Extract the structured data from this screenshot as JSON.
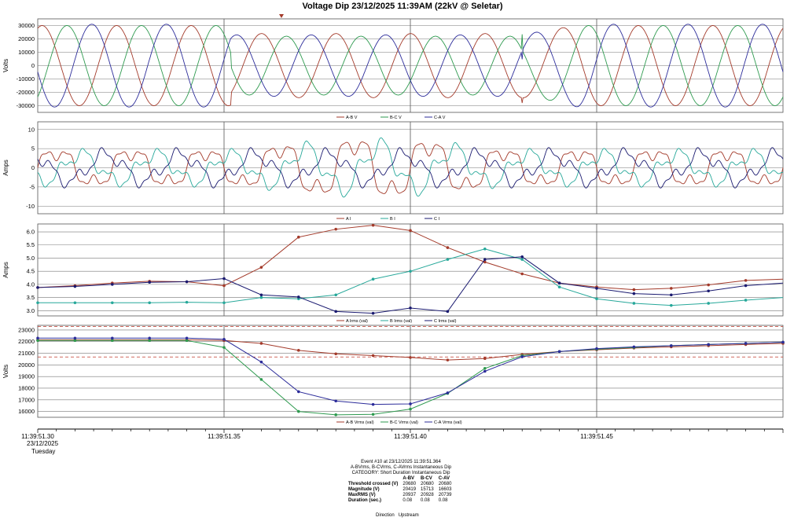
{
  "title": "Voltage Dip 23/12/2025 11:39AM (22kV @ Seletar)",
  "colors": {
    "red": "#a33a2a",
    "green": "#2e9a4f",
    "blue": "#2c2c9a",
    "teal": "#27a89a",
    "navy": "#1a1a70",
    "threshold": "#c0392b"
  },
  "x_axis": {
    "ticks": [
      "11:39:51.30",
      "11:39:51.35",
      "11:39:51.40",
      "11:39:51.45"
    ],
    "date": "23/12/2025",
    "day": "Tuesday"
  },
  "chart_data": [
    {
      "type": "line",
      "ylabel": "Volts",
      "ylim": [
        -35000,
        35000
      ],
      "yticks": [
        -30000,
        -20000,
        -10000,
        0,
        10000,
        20000,
        30000
      ],
      "legend": [
        "A-B V",
        "B-C V",
        "C-A V"
      ],
      "series": [
        {
          "name": "A-B V",
          "amp_pre": 30000,
          "amp_dip": 24000,
          "phase_deg": 0
        },
        {
          "name": "B-C V",
          "amp_pre": 30000,
          "amp_dip": 22000,
          "phase_deg": -120
        },
        {
          "name": "C-A V",
          "amp_pre": 31000,
          "amp_dip": 23000,
          "phase_deg": 120
        }
      ],
      "frequency_hz": 50
    },
    {
      "type": "line",
      "ylabel": "Amps",
      "ylim": [
        -12,
        12
      ],
      "yticks": [
        -10,
        -5,
        0,
        5,
        10
      ],
      "legend": [
        "A I",
        "B I",
        "C I"
      ],
      "series": [
        {
          "name": "A I",
          "amp_pre": 6,
          "amp_dip": 10
        },
        {
          "name": "B I",
          "amp_pre": 5,
          "amp_dip": 8
        },
        {
          "name": "C I",
          "amp_pre": 5,
          "amp_dip": 5
        }
      ]
    },
    {
      "type": "line",
      "ylabel": "Amps",
      "ylim": [
        2.8,
        6.3
      ],
      "yticks": [
        3.0,
        3.5,
        4.0,
        4.5,
        5.0,
        5.5,
        6.0
      ],
      "legend": [
        "A Irms (val)",
        "B Irms (val)",
        "C Irms (val)"
      ],
      "x_ms": [
        0,
        10,
        20,
        30,
        40,
        50,
        60,
        70,
        80,
        90,
        100,
        110,
        120,
        130,
        140,
        150,
        160,
        170,
        180,
        190,
        200
      ],
      "series": [
        {
          "name": "A Irms (val)",
          "values": [
            3.88,
            3.95,
            4.05,
            4.12,
            4.1,
            3.95,
            4.65,
            5.8,
            6.1,
            6.25,
            6.05,
            5.4,
            4.85,
            4.4,
            4.05,
            3.9,
            3.8,
            3.85,
            3.98,
            4.15,
            4.2
          ]
        },
        {
          "name": "B Irms (val)",
          "values": [
            3.3,
            3.3,
            3.3,
            3.3,
            3.32,
            3.3,
            3.5,
            3.45,
            3.6,
            4.2,
            4.5,
            4.95,
            5.35,
            4.95,
            3.9,
            3.45,
            3.28,
            3.2,
            3.28,
            3.4,
            3.5
          ]
        },
        {
          "name": "C Irms (val)",
          "values": [
            3.88,
            3.92,
            4.0,
            4.08,
            4.1,
            4.22,
            3.6,
            3.52,
            2.97,
            2.9,
            3.1,
            2.97,
            4.95,
            5.05,
            4.05,
            3.85,
            3.65,
            3.6,
            3.75,
            3.95,
            4.05
          ]
        }
      ]
    },
    {
      "type": "line",
      "ylabel": "Volts",
      "ylim": [
        15500,
        23400
      ],
      "yticks": [
        16000,
        17000,
        18000,
        19000,
        20000,
        21000,
        22000,
        23000
      ],
      "legend": [
        "A-B Vrms (val)",
        "B-C Vrms (val)",
        "C-A Vrms (val)"
      ],
      "thresholds": [
        23300,
        20680
      ],
      "x_ms": [
        0,
        10,
        20,
        30,
        40,
        50,
        60,
        70,
        80,
        90,
        100,
        110,
        120,
        130,
        140,
        150,
        160,
        170,
        180,
        190,
        200
      ],
      "series": [
        {
          "name": "A-B Vrms (val)",
          "values": [
            22150,
            22150,
            22150,
            22150,
            22150,
            22100,
            21850,
            21250,
            20950,
            20800,
            20640,
            20419,
            20550,
            20900,
            21150,
            21300,
            21450,
            21550,
            21650,
            21750,
            21850
          ]
        },
        {
          "name": "B-C Vrms (val)",
          "values": [
            22100,
            22100,
            22100,
            22100,
            22100,
            21500,
            18750,
            16000,
            15713,
            15750,
            16200,
            17550,
            19700,
            20800,
            21150,
            21350,
            21500,
            21650,
            21750,
            21850,
            21950
          ]
        },
        {
          "name": "C-A Vrms (val)",
          "values": [
            22300,
            22300,
            22300,
            22300,
            22300,
            22200,
            20250,
            17700,
            16900,
            16603,
            16650,
            17600,
            19450,
            20700,
            21150,
            21400,
            21550,
            21650,
            21750,
            21850,
            21950
          ]
        }
      ]
    }
  ],
  "summary": {
    "event": "Event #10 at 23/12/2025 11:39:51.364",
    "line2": "A-BVrms, B-CVrms, C-AVrms Instantaneous Dip",
    "category": "CATEGORY: Short Duration Instantaneous Dip",
    "headers": [
      "A-BV",
      "B-CV",
      "C-AV"
    ],
    "rows": [
      {
        "label": "Threshold crossed (V)",
        "values": [
          "20680",
          "20680",
          "20680"
        ]
      },
      {
        "label": "Magnitude (V)",
        "values": [
          "20419",
          "15713",
          "16603"
        ]
      },
      {
        "label": "MaxRMS (V)",
        "values": [
          "20937",
          "20928",
          "20739"
        ]
      },
      {
        "label": "Duration (sec.)",
        "values": [
          "0.08",
          "0.08",
          "0.08"
        ]
      }
    ],
    "direction_label": "Direction",
    "direction_value": "Upstream"
  }
}
